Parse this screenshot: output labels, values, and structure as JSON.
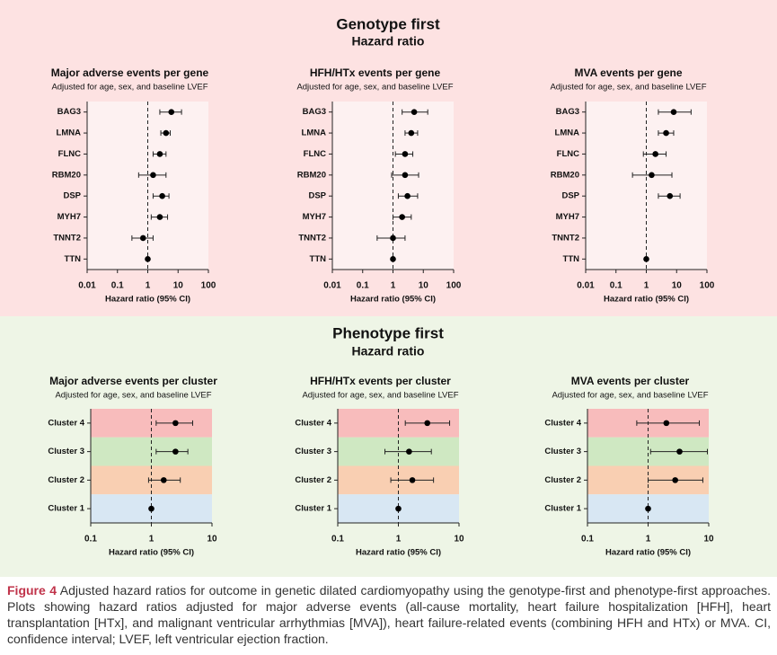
{
  "sections": [
    {
      "title": "Genotype first",
      "subtitle": "Hazard ratio"
    },
    {
      "title": "Phenotype first",
      "subtitle": "Hazard ratio"
    }
  ],
  "chart_data": [
    {
      "type": "forest",
      "title": "Major adverse events per gene",
      "subtitle": "Adjusted for age, sex, and baseline LVEF",
      "x_label": "Hazard ratio (95% CI)",
      "log_x": true,
      "xlim": [
        0.01,
        100
      ],
      "xticks": [
        0.01,
        0.1,
        1,
        10,
        100
      ],
      "reference": 1,
      "categories": [
        "BAG3",
        "LMNA",
        "FLNC",
        "RBM20",
        "DSP",
        "MYH7",
        "TNNT2",
        "TTN"
      ],
      "values": [
        6,
        4,
        2.5,
        1.5,
        3,
        2.5,
        0.7,
        1
      ],
      "lower": [
        2.5,
        2.7,
        1.5,
        0.5,
        1.5,
        1.3,
        0.3,
        null
      ],
      "upper": [
        13,
        5.5,
        4,
        4,
        5,
        4.5,
        1.5,
        null
      ]
    },
    {
      "type": "forest",
      "title": "HFH/HTx events per gene",
      "subtitle": "Adjusted for age, sex, and baseline LVEF",
      "x_label": "Hazard ratio (95% CI)",
      "log_x": true,
      "xlim": [
        0.01,
        100
      ],
      "xticks": [
        0.01,
        0.1,
        1,
        10,
        100
      ],
      "reference": 1,
      "categories": [
        "BAG3",
        "LMNA",
        "FLNC",
        "RBM20",
        "DSP",
        "MYH7",
        "TNNT2",
        "TTN"
      ],
      "values": [
        5,
        4,
        2.5,
        2.5,
        3,
        2,
        1,
        1
      ],
      "lower": [
        2,
        2.5,
        1.2,
        0.9,
        1.5,
        1,
        0.3,
        null
      ],
      "upper": [
        14,
        6.5,
        4.5,
        7,
        6.5,
        4,
        2.5,
        null
      ]
    },
    {
      "type": "forest",
      "title": "MVA events per gene",
      "subtitle": "Adjusted for age, sex, and baseline LVEF",
      "x_label": "Hazard ratio (95% CI)",
      "log_x": true,
      "xlim": [
        0.01,
        100
      ],
      "xticks": [
        0.01,
        0.1,
        1,
        10,
        100
      ],
      "reference": 1,
      "categories": [
        "BAG3",
        "LMNA",
        "FLNC",
        "RBM20",
        "DSP",
        "MYH7",
        "TNNT2",
        "TTN"
      ],
      "values": [
        8,
        4.5,
        2,
        1.5,
        6,
        null,
        null,
        1
      ],
      "lower": [
        2.5,
        2.5,
        0.8,
        0.35,
        2.5,
        null,
        null,
        null
      ],
      "upper": [
        30,
        8,
        4.5,
        7,
        13,
        null,
        null,
        null
      ]
    },
    {
      "type": "forest",
      "title": "Major adverse events per cluster",
      "subtitle": "Adjusted for age, sex, and baseline LVEF",
      "x_label": "Hazard ratio (95% CI)",
      "log_x": true,
      "xlim": [
        0.1,
        10
      ],
      "xticks": [
        0.1,
        1,
        10
      ],
      "reference": 1,
      "categories": [
        "Cluster 4",
        "Cluster 3",
        "Cluster 2",
        "Cluster 1"
      ],
      "band_colors": [
        "#f8bcbc",
        "#cfe8c2",
        "#f9cfb2",
        "#d8e7f3"
      ],
      "values": [
        2.5,
        2.5,
        1.6,
        1
      ],
      "lower": [
        1.2,
        1.2,
        0.9,
        null
      ],
      "upper": [
        4.8,
        4,
        3,
        null
      ]
    },
    {
      "type": "forest",
      "title": "HFH/HTx events per cluster",
      "subtitle": "Adjusted for age, sex, and baseline LVEF",
      "x_label": "Hazard ratio (95% CI)",
      "log_x": true,
      "xlim": [
        0.1,
        10
      ],
      "xticks": [
        0.1,
        1,
        10
      ],
      "reference": 1,
      "categories": [
        "Cluster 4",
        "Cluster 3",
        "Cluster 2",
        "Cluster 1"
      ],
      "band_colors": [
        "#f8bcbc",
        "#cfe8c2",
        "#f9cfb2",
        "#d8e7f3"
      ],
      "values": [
        3,
        1.5,
        1.7,
        1
      ],
      "lower": [
        1.3,
        0.6,
        0.75,
        null
      ],
      "upper": [
        7,
        3.5,
        3.8,
        null
      ]
    },
    {
      "type": "forest",
      "title": "MVA events per cluster",
      "subtitle": "Adjusted for age, sex, and baseline LVEF",
      "x_label": "Hazard ratio (95% CI)",
      "log_x": true,
      "xlim": [
        0.1,
        10
      ],
      "xticks": [
        0.1,
        1,
        10
      ],
      "reference": 1,
      "categories": [
        "Cluster 4",
        "Cluster 3",
        "Cluster 2",
        "Cluster 1"
      ],
      "band_colors": [
        "#f8bcbc",
        "#cfe8c2",
        "#f9cfb2",
        "#d8e7f3"
      ],
      "values": [
        2,
        3.3,
        2.8,
        1
      ],
      "lower": [
        0.65,
        1.1,
        1,
        null
      ],
      "upper": [
        7,
        9.5,
        8,
        null
      ]
    }
  ],
  "caption": {
    "label": "Figure 4",
    "text": "Adjusted hazard ratios for outcome in genetic dilated cardiomyopathy using the genotype-first and phenotype-first approaches. Plots showing hazard ratios adjusted for major adverse events (all-cause mortality, heart failure hospitalization [HFH], heart transplantation [HTx], and malignant ventricular arrhythmias [MVA]), heart failure-related events (combining HFH and HTx) or MVA. CI, confidence interval; LVEF, left ventricular ejection fraction."
  }
}
